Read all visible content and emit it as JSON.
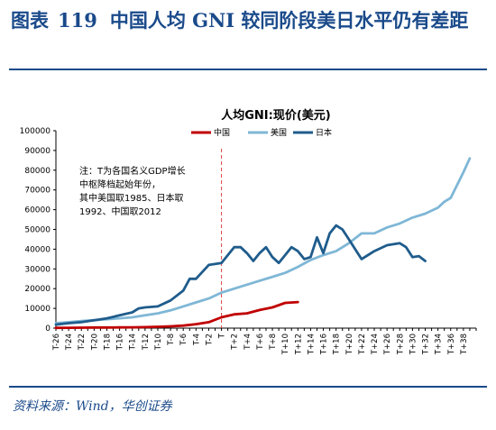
{
  "header": {
    "label": "图表",
    "number": "119",
    "title": "中国人均 GNI 较同阶段美日水平仍有差距"
  },
  "source": "资料来源：Wind，华创证券",
  "note": [
    "注：T为各国名义GDP增长",
    "中枢降档起始年份，",
    "其中美国取1985、日本取",
    "1992、中国取2012"
  ],
  "colors": {
    "china": "#c00000",
    "usa": "#7fb7d6",
    "japan": "#1f5c8c",
    "marker": "#e04040"
  },
  "chart_data": {
    "type": "line",
    "title": "人均GNI:现价(美元)",
    "ylim": [
      0,
      100000
    ],
    "yticks": [
      0,
      10000,
      20000,
      30000,
      40000,
      50000,
      60000,
      70000,
      80000,
      90000,
      100000
    ],
    "xlim": [
      -26,
      40
    ],
    "xtick_labels": [
      "T-26",
      "T-24",
      "T-22",
      "T-20",
      "T-18",
      "T-16",
      "T-14",
      "T-12",
      "T-10",
      "T-8",
      "T-6",
      "T-4",
      "T-2",
      "T",
      "T+2",
      "T+4",
      "T+6",
      "T+8",
      "T+10",
      "T+12",
      "T+14",
      "T+16",
      "T+18",
      "T+20",
      "T+22",
      "T+24",
      "T+26",
      "T+28",
      "T+30",
      "T+32",
      "T+34",
      "T+36",
      "T+38"
    ],
    "marker_x": 0,
    "legend_placement": "top",
    "grid": false,
    "series": [
      {
        "name": "中国",
        "color_key": "china",
        "x": [
          -26,
          -24,
          -22,
          -20,
          -18,
          -16,
          -14,
          -12,
          -10,
          -8,
          -6,
          -4,
          -2,
          0,
          2,
          4,
          6,
          8,
          10,
          12
        ],
        "y": [
          150,
          200,
          250,
          300,
          330,
          360,
          400,
          500,
          700,
          900,
          1300,
          2000,
          3000,
          5500,
          7000,
          7500,
          9200,
          10500,
          12800,
          13200
        ]
      },
      {
        "name": "美国",
        "color_key": "usa",
        "x": [
          -26,
          -24,
          -22,
          -20,
          -18,
          -16,
          -14,
          -12,
          -10,
          -8,
          -6,
          -4,
          -2,
          0,
          2,
          4,
          6,
          8,
          10,
          12,
          14,
          16,
          18,
          20,
          22,
          24,
          26,
          28,
          30,
          32,
          34,
          35,
          36,
          38,
          39
        ],
        "y": [
          2500,
          3000,
          3600,
          4000,
          4500,
          5000,
          5500,
          6500,
          7500,
          9000,
          11000,
          13000,
          15000,
          18000,
          20000,
          22000,
          24000,
          26000,
          28000,
          31000,
          34500,
          37000,
          39000,
          43000,
          48000,
          48000,
          51000,
          53000,
          56000,
          58000,
          61000,
          64000,
          66000,
          79000,
          86000
        ]
      },
      {
        "name": "日本",
        "color_key": "japan",
        "x": [
          -26,
          -24,
          -22,
          -20,
          -18,
          -16,
          -14,
          -13,
          -12,
          -10,
          -8,
          -6,
          -5,
          -4,
          -2,
          0,
          1,
          2,
          3,
          4,
          5,
          6,
          7,
          8,
          9,
          10,
          11,
          12,
          13,
          14,
          15,
          16,
          17,
          18,
          19,
          20,
          21,
          22,
          23,
          24,
          26,
          28,
          29,
          30,
          31,
          32
        ],
        "y": [
          1800,
          2500,
          3000,
          4000,
          5000,
          6500,
          8000,
          10000,
          10500,
          11000,
          14000,
          19000,
          25000,
          25000,
          32000,
          33000,
          37000,
          41000,
          41000,
          38000,
          34000,
          38000,
          41000,
          36000,
          33000,
          37000,
          41000,
          39000,
          35000,
          36000,
          46000,
          38000,
          48000,
          52000,
          50000,
          45000,
          40000,
          35000,
          37000,
          39000,
          42000,
          43000,
          41000,
          36000,
          36500,
          34000
        ]
      }
    ]
  }
}
